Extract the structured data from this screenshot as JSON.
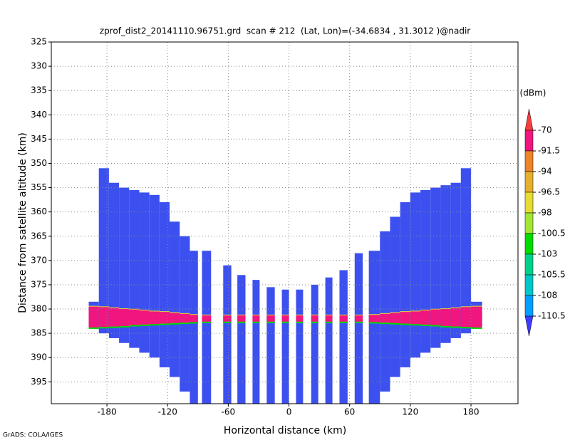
{
  "chart_data": {
    "type": "profile",
    "title": "zprof_dist2_20141110.96751.grd  scan # 212  (Lat, Lon)=(-34.6834 , 31.3012 )@nadir",
    "x_label": "Horizontal distance (km)",
    "y_label": "Distance from satellite altitude (km)",
    "footer": "GrADS: COLA/IGES",
    "xlim": [
      -235,
      226.5
    ],
    "xticks": [
      -180,
      -120,
      -60,
      0,
      60,
      120,
      180
    ],
    "ylim": [
      325,
      399.5
    ],
    "y_reversed": true,
    "yticks": [
      325,
      330,
      335,
      340,
      345,
      350,
      355,
      360,
      365,
      370,
      375,
      380,
      385,
      390,
      395
    ],
    "grid": true,
    "x_left": [
      -198,
      -188,
      -178,
      -168,
      -158,
      -148,
      -138,
      -128,
      -118,
      -108,
      -98,
      -86,
      -65,
      -51,
      -36,
      -22,
      -7,
      7,
      22,
      36,
      50,
      65,
      79,
      90,
      100,
      110,
      120,
      130,
      140,
      150,
      160,
      170,
      180
    ],
    "x_right": [
      -188,
      -178,
      -168,
      -158,
      -148,
      -138,
      -128,
      -118,
      -108,
      -98,
      -90,
      -77,
      -57,
      -43,
      -29,
      -14,
      0,
      14,
      29,
      43,
      58,
      73,
      90,
      100,
      110,
      120,
      130,
      140,
      150,
      160,
      170,
      180,
      191
    ],
    "echo_top": [
      378.5,
      351,
      354,
      355,
      355.5,
      356,
      356.5,
      358,
      362,
      365,
      368,
      368,
      371,
      373,
      374,
      375.5,
      376,
      376,
      375,
      373.5,
      372,
      368.5,
      368,
      364,
      361,
      358,
      356,
      355.5,
      355,
      354.5,
      354,
      351,
      378.5
    ],
    "echo_bottom": [
      384,
      385,
      386,
      387,
      388,
      389,
      390,
      392,
      394,
      397,
      399.5,
      399.5,
      399.5,
      399.5,
      399.5,
      399.5,
      399.5,
      399.5,
      399.5,
      399.5,
      399.5,
      399.5,
      399.5,
      397,
      394,
      392,
      390,
      389,
      388,
      387,
      386,
      385,
      384
    ],
    "band_top": [
      379.5,
      379.6,
      379.8,
      380,
      380.1,
      380.3,
      380.5,
      380.6,
      380.8,
      381,
      381.2,
      381.3,
      381.3,
      381.3,
      381.3,
      381.3,
      381.3,
      381.3,
      381.3,
      381.3,
      381.3,
      381.3,
      381.2,
      381,
      380.8,
      380.6,
      380.5,
      380.3,
      380.1,
      380,
      379.8,
      379.6,
      379.5
    ],
    "band_bottom": [
      383.8,
      383.7,
      383.6,
      383.5,
      383.3,
      383.2,
      383.1,
      383,
      382.9,
      382.8,
      382.7,
      382.6,
      382.6,
      382.6,
      382.6,
      382.6,
      382.6,
      382.6,
      382.6,
      382.6,
      382.6,
      382.6,
      382.7,
      382.8,
      382.9,
      383,
      383.1,
      383.2,
      383.3,
      383.5,
      383.6,
      383.7,
      383.8
    ],
    "echo_color": "#3c50f0",
    "band_color": "#f0157f",
    "colorbar": {
      "title": "(dBm)",
      "levels": [
        -70,
        -91.5,
        -94,
        -96.5,
        -98,
        -100.5,
        -103,
        -105.5,
        -108,
        -110.5
      ],
      "colors": [
        "#fa3c3c",
        "#f0157f",
        "#f08228",
        "#e6af2d",
        "#e6dc32",
        "#a0e632",
        "#00dc00",
        "#00d28c",
        "#00c8c8",
        "#00a0ff",
        "#3c3cff"
      ]
    }
  }
}
